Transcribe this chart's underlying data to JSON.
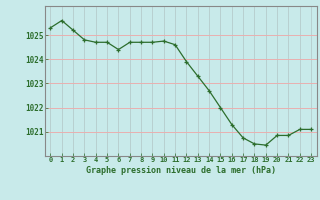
{
  "hours": [
    0,
    1,
    2,
    3,
    4,
    5,
    6,
    7,
    8,
    9,
    10,
    11,
    12,
    13,
    14,
    15,
    16,
    17,
    18,
    19,
    20,
    21,
    22,
    23
  ],
  "pressure": [
    1025.3,
    1025.6,
    1025.2,
    1024.8,
    1024.7,
    1024.7,
    1024.4,
    1024.7,
    1024.7,
    1024.7,
    1024.75,
    1024.6,
    1023.9,
    1023.3,
    1022.7,
    1022.0,
    1021.3,
    1020.75,
    1020.5,
    1020.45,
    1020.85,
    1020.85,
    1021.1,
    1021.1
  ],
  "line_color": "#2d6e2d",
  "marker": "+",
  "background_color": "#c8eaea",
  "grid_h_color": "#e8b0b0",
  "grid_v_color": "#b8d0d0",
  "xlabel": "Graphe pression niveau de la mer (hPa)",
  "xlabel_color": "#2d6e2d",
  "tick_color": "#2d6e2d",
  "border_color": "#888888",
  "ylim": [
    1020.0,
    1026.2
  ],
  "yticks": [
    1021,
    1022,
    1023,
    1024,
    1025
  ],
  "xlim": [
    -0.5,
    23.5
  ],
  "figsize": [
    3.2,
    2.0
  ],
  "dpi": 100
}
